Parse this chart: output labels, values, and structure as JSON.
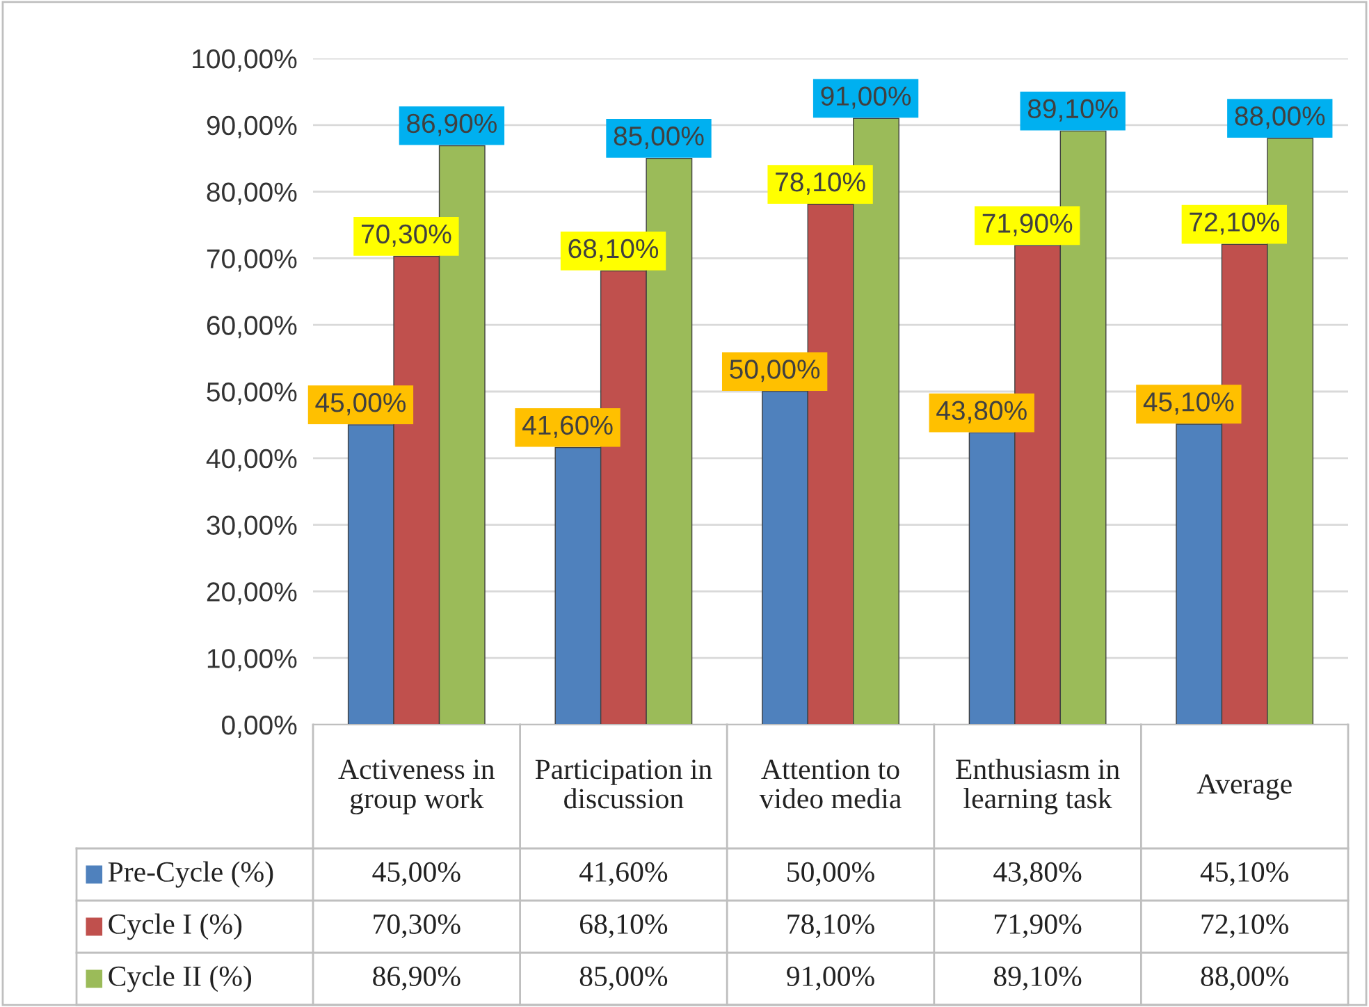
{
  "chart_data": {
    "type": "bar",
    "categories": [
      "Activeness in group work",
      "Participation in discussion",
      "Attention to video media",
      "Enthusiasm in learning task",
      "Average"
    ],
    "series": [
      {
        "name": "Pre-Cycle (%)",
        "color": "#4f81bd",
        "values": [
          45.0,
          41.6,
          50.0,
          43.8,
          45.1
        ],
        "value_labels": [
          "45,00%",
          "41,60%",
          "50,00%",
          "43,80%",
          "45,10%"
        ]
      },
      {
        "name": "Cycle I (%)",
        "color": "#c0504d",
        "values": [
          70.3,
          68.1,
          78.1,
          71.9,
          72.1
        ],
        "value_labels": [
          "70,30%",
          "68,10%",
          "78,10%",
          "71,90%",
          "72,10%"
        ]
      },
      {
        "name": "Cycle II (%)",
        "color": "#9bbb59",
        "values": [
          86.9,
          85.0,
          91.0,
          89.1,
          88.0
        ],
        "value_labels": [
          "86,90%",
          "85,00%",
          "91,00%",
          "89,10%",
          "88,00%"
        ]
      }
    ],
    "ylim": [
      0,
      100
    ],
    "yticks": [
      {
        "value": 0,
        "label": "0,00%"
      },
      {
        "value": 10,
        "label": "10,00%"
      },
      {
        "value": 20,
        "label": "20,00%"
      },
      {
        "value": 30,
        "label": "30,00%"
      },
      {
        "value": 40,
        "label": "40,00%"
      },
      {
        "value": 50,
        "label": "50,00%"
      },
      {
        "value": 60,
        "label": "60,00%"
      },
      {
        "value": 70,
        "label": "70,00%"
      },
      {
        "value": 80,
        "label": "80,00%"
      },
      {
        "value": 90,
        "label": "90,00%"
      },
      {
        "value": 100,
        "label": "100,00%"
      }
    ],
    "grid": "y",
    "legend": "bottom"
  }
}
